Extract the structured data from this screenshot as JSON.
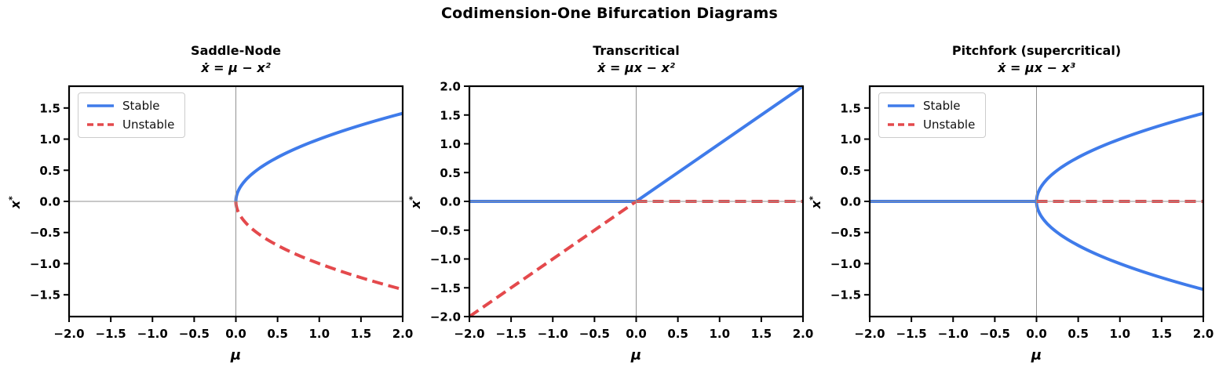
{
  "figure": {
    "title": "Codimension-One Bifurcation Diagrams"
  },
  "axis_labels": {
    "x": "μ",
    "y_base": "x",
    "y_sup": "*"
  },
  "legend": {
    "stable_label": "Stable",
    "unstable_label": "Unstable"
  },
  "colors": {
    "stable": "#3f7bea",
    "unstable": "#e4494c",
    "refline": "#929292",
    "spine": "#000000",
    "legend_border": "#cccccc"
  },
  "chart_data": [
    {
      "type": "line",
      "title": "Saddle-Node",
      "equation": "ẋ = μ − x²",
      "xlabel": "μ",
      "ylabel": "x*",
      "xlim": [
        -2.0,
        2.0
      ],
      "ylim": [
        -1.85,
        1.85
      ],
      "xticks": [
        -2.0,
        -1.5,
        -1.0,
        -0.5,
        0.0,
        0.5,
        1.0,
        1.5,
        2.0
      ],
      "yticks": [
        -1.5,
        -1.0,
        -0.5,
        0.0,
        0.5,
        1.0,
        1.5
      ],
      "grid": false,
      "legend_visible": true,
      "legend_position": "upper-left",
      "series": [
        {
          "name": "Stable",
          "color": "stable",
          "style": "solid",
          "branches": [
            {
              "fn": "sqrt",
              "sign": 1,
              "domain": [
                0,
                2
              ]
            }
          ]
        },
        {
          "name": "Unstable",
          "color": "unstable",
          "style": "dashed",
          "branches": [
            {
              "fn": "sqrt",
              "sign": -1,
              "domain": [
                0,
                2
              ]
            }
          ]
        }
      ]
    },
    {
      "type": "line",
      "title": "Transcritical",
      "equation": "ẋ = μx − x²",
      "xlabel": "μ",
      "ylabel": "x*",
      "xlim": [
        -2.0,
        2.0
      ],
      "ylim": [
        -2.0,
        2.0
      ],
      "xticks": [
        -2.0,
        -1.5,
        -1.0,
        -0.5,
        0.0,
        0.5,
        1.0,
        1.5,
        2.0
      ],
      "yticks": [
        -2.0,
        -1.5,
        -1.0,
        -0.5,
        0.0,
        0.5,
        1.0,
        1.5,
        2.0
      ],
      "grid": false,
      "legend_visible": false,
      "series": [
        {
          "name": "Stable",
          "color": "stable",
          "style": "solid",
          "branches": [
            {
              "fn": "const",
              "value": 0,
              "domain": [
                -2,
                0
              ]
            },
            {
              "fn": "linear",
              "slope": 1,
              "intercept": 0,
              "domain": [
                0,
                2
              ]
            }
          ]
        },
        {
          "name": "Unstable",
          "color": "unstable",
          "style": "dashed",
          "branches": [
            {
              "fn": "linear",
              "slope": 1,
              "intercept": 0,
              "domain": [
                -2,
                0
              ]
            },
            {
              "fn": "const",
              "value": 0,
              "domain": [
                0,
                2
              ]
            }
          ]
        }
      ]
    },
    {
      "type": "line",
      "title": "Pitchfork (supercritical)",
      "equation": "ẋ = μx − x³",
      "xlabel": "μ",
      "ylabel": "x*",
      "xlim": [
        -2.0,
        2.0
      ],
      "ylim": [
        -1.85,
        1.85
      ],
      "xticks": [
        -2.0,
        -1.5,
        -1.0,
        -0.5,
        0.0,
        0.5,
        1.0,
        1.5,
        2.0
      ],
      "yticks": [
        -1.5,
        -1.0,
        -0.5,
        0.0,
        0.5,
        1.0,
        1.5
      ],
      "grid": false,
      "legend_visible": true,
      "legend_position": "upper-left",
      "series": [
        {
          "name": "Stable",
          "color": "stable",
          "style": "solid",
          "branches": [
            {
              "fn": "const",
              "value": 0,
              "domain": [
                -2,
                0
              ]
            },
            {
              "fn": "sqrt",
              "sign": 1,
              "domain": [
                0,
                2
              ]
            },
            {
              "fn": "sqrt",
              "sign": -1,
              "domain": [
                0,
                2
              ]
            }
          ]
        },
        {
          "name": "Unstable",
          "color": "unstable",
          "style": "dashed",
          "branches": [
            {
              "fn": "const",
              "value": 0,
              "domain": [
                0,
                2
              ]
            }
          ]
        }
      ]
    }
  ]
}
